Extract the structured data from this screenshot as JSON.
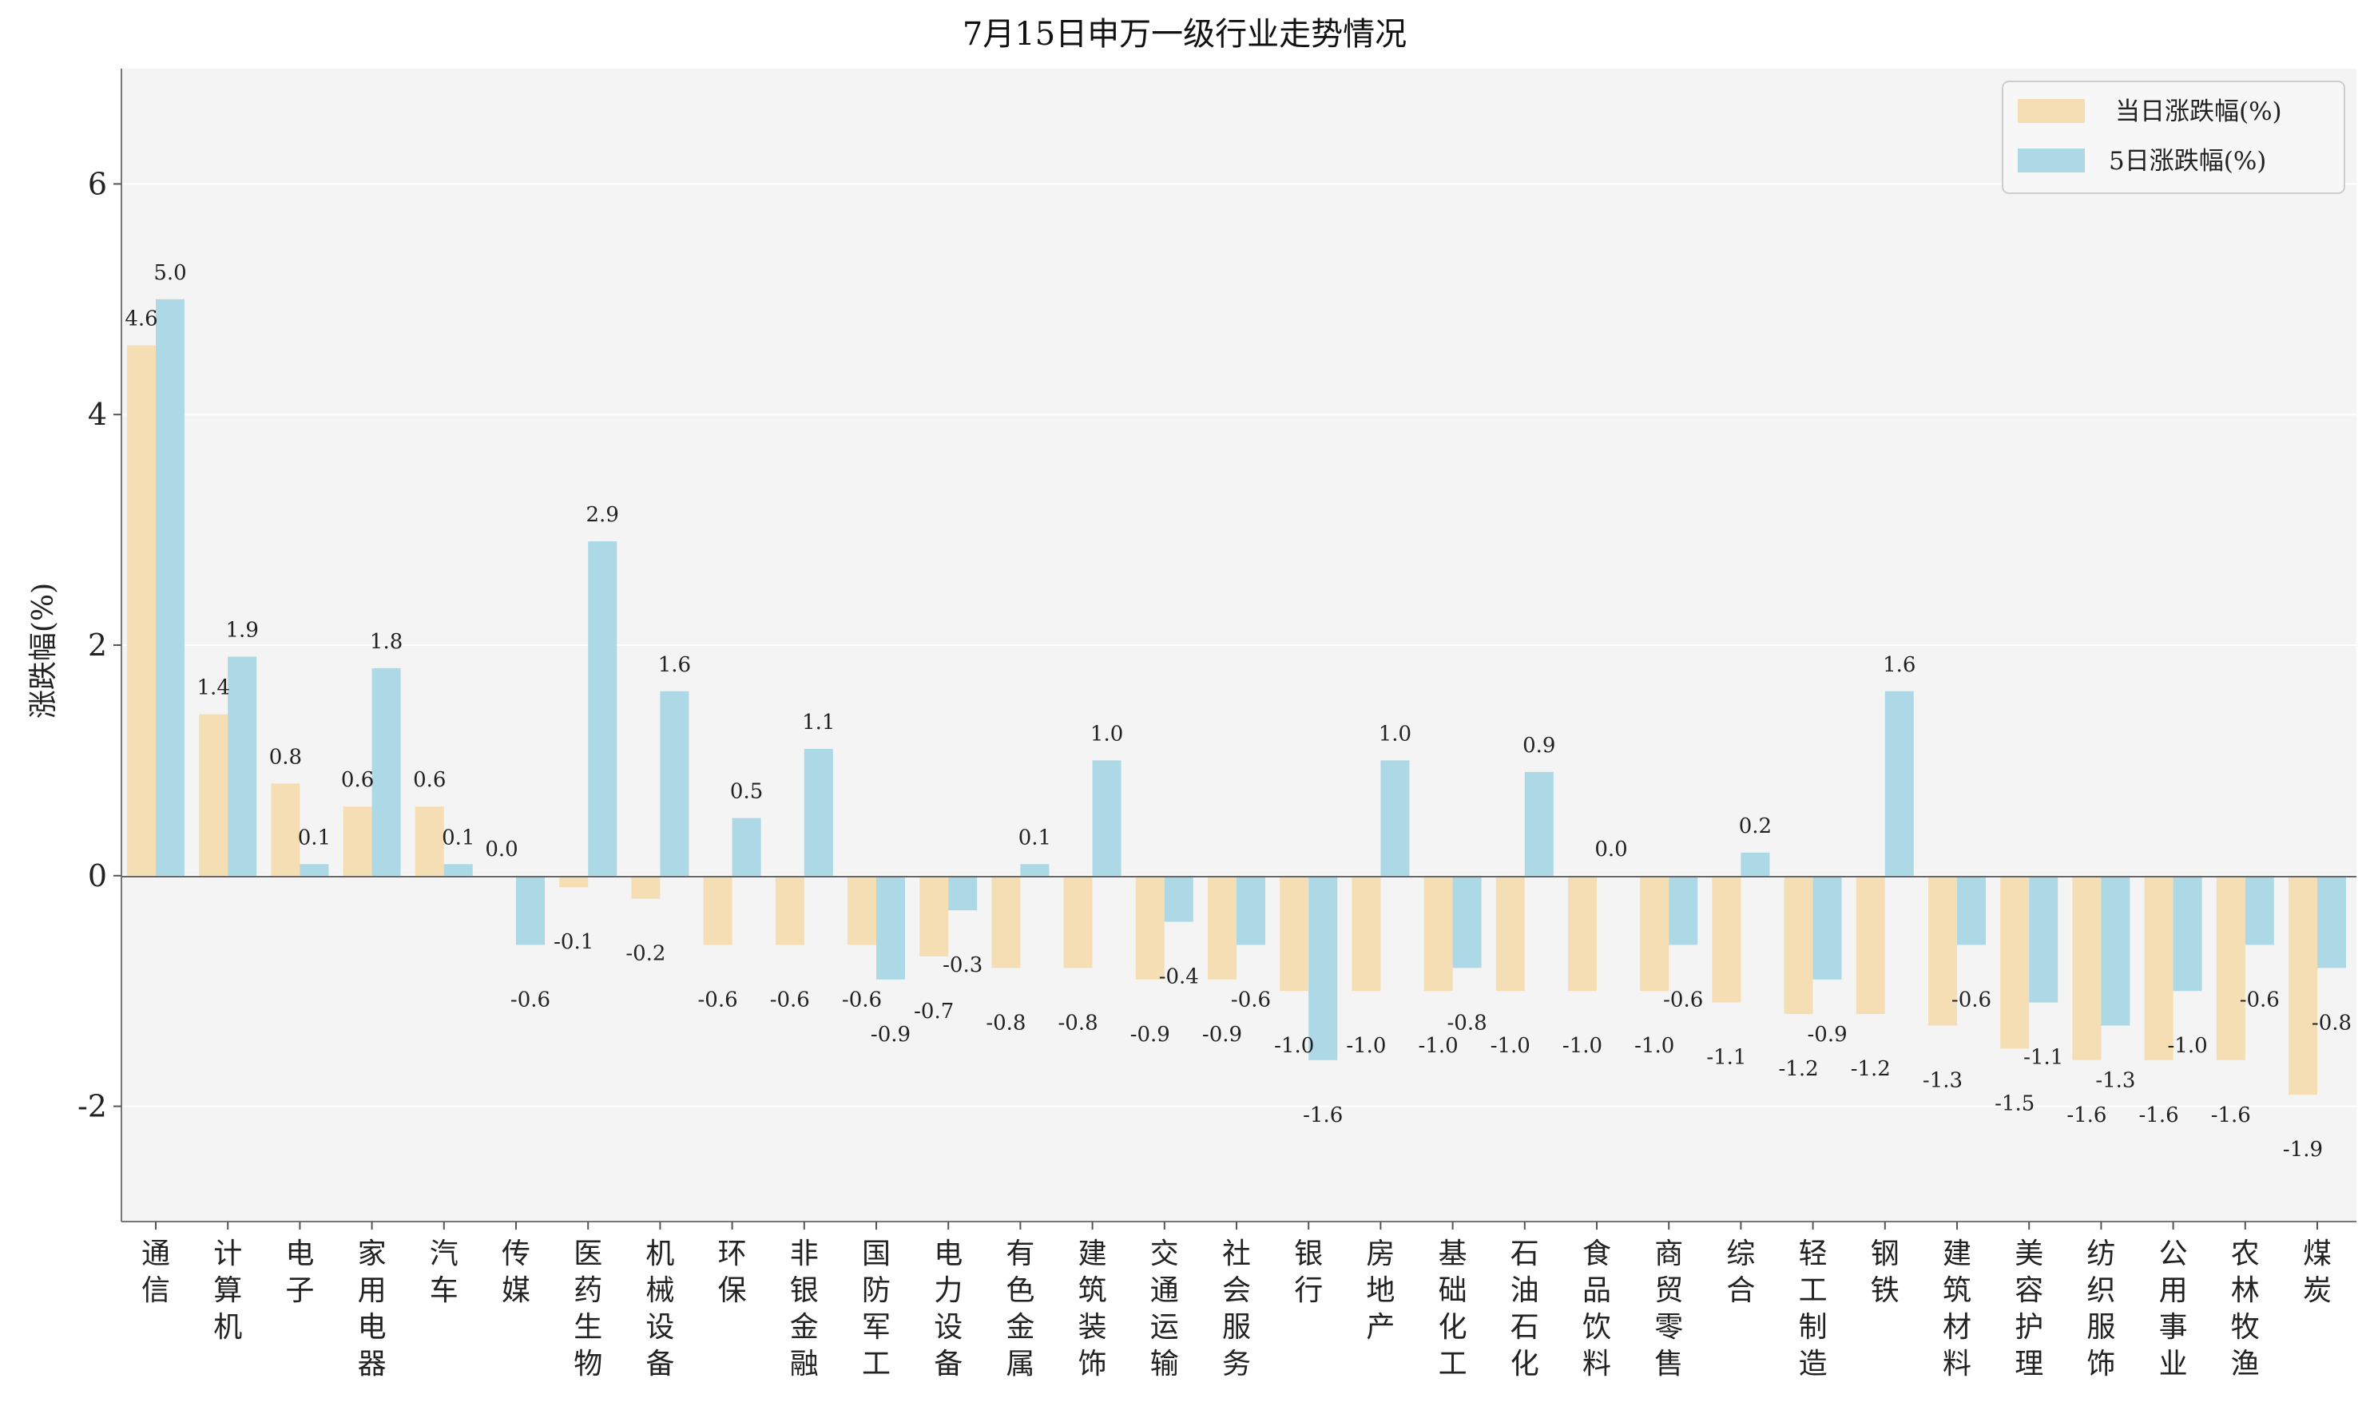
{
  "chart_data": {
    "type": "bar",
    "title": "7月15日申万一级行业走势情况",
    "ylabel": "涨跌幅(%)",
    "xlabel": "",
    "ylim": [
      -3,
      7
    ],
    "yticks": [
      -2,
      0,
      2,
      4,
      6
    ],
    "grid": "horizontal",
    "legend_position": "top-right",
    "categories": [
      "通信",
      "计算机",
      "电子",
      "家用电器",
      "汽车",
      "传媒",
      "医药生物",
      "机械设备",
      "环保",
      "非银金融",
      "国防军工",
      "电力设备",
      "有色金属",
      "建筑装饰",
      "交通运输",
      "社会服务",
      "银行",
      "房地产",
      "基础化工",
      "石油石化",
      "食品饮料",
      "商贸零售",
      "综合",
      "轻工制造",
      "钢铁",
      "建筑材料",
      "美容护理",
      "纺织服饰",
      "公用事业",
      "农林牧渔",
      "煤炭"
    ],
    "series": [
      {
        "name": "当日涨跌幅(%)",
        "color": "#f5deb3",
        "values": [
          4.6,
          1.4,
          0.8,
          0.6,
          0.6,
          0.0,
          -0.1,
          -0.2,
          -0.6,
          -0.6,
          -0.6,
          -0.7,
          -0.8,
          -0.8,
          -0.9,
          -0.9,
          -1.0,
          -1.0,
          -1.0,
          -1.0,
          -1.0,
          -1.0,
          -1.1,
          -1.2,
          -1.2,
          -1.3,
          -1.5,
          -1.6,
          -1.6,
          -1.6,
          -1.9
        ]
      },
      {
        "name": "5日涨跌幅(%)",
        "color": "#add8e6",
        "values": [
          5.0,
          1.9,
          0.1,
          1.8,
          0.1,
          -0.6,
          2.9,
          1.6,
          0.5,
          1.1,
          -0.9,
          -0.3,
          0.1,
          1.0,
          -0.4,
          -0.6,
          -1.6,
          1.0,
          -0.8,
          0.9,
          0.0,
          -0.6,
          0.2,
          -0.9,
          1.6,
          -0.6,
          -1.1,
          -1.3,
          -1.0,
          -0.6,
          -0.8
        ]
      }
    ]
  }
}
